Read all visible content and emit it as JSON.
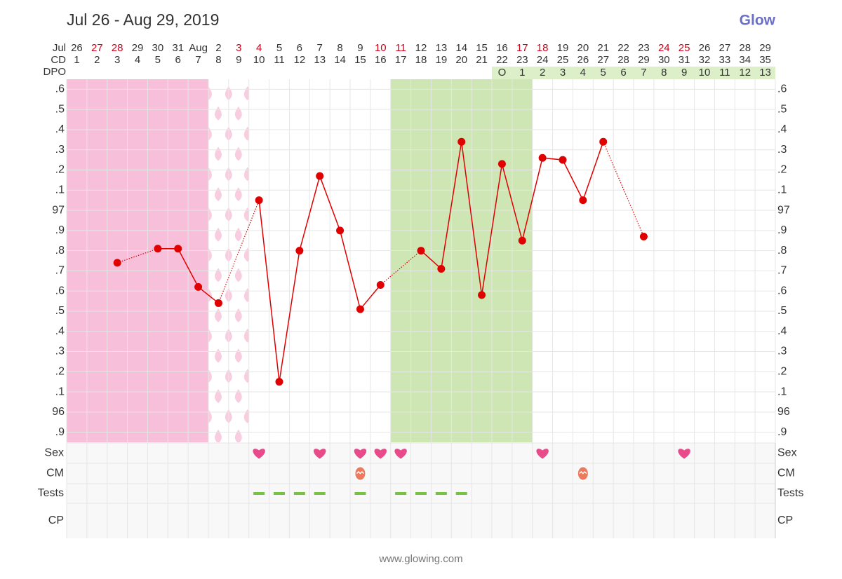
{
  "header": {
    "title": "Jul 26 - Aug 29, 2019",
    "logo": "Glow"
  },
  "chart_data": {
    "type": "line",
    "row_labels": {
      "date": "Jul",
      "cd": "CD",
      "dpo": "DPO"
    },
    "dates": [
      "26",
      "27",
      "28",
      "29",
      "30",
      "31",
      "Aug",
      "2",
      "3",
      "4",
      "5",
      "6",
      "7",
      "8",
      "9",
      "10",
      "11",
      "12",
      "13",
      "14",
      "15",
      "16",
      "17",
      "18",
      "19",
      "20",
      "21",
      "22",
      "23",
      "24",
      "25",
      "26",
      "27",
      "28",
      "29"
    ],
    "weekend": [
      false,
      true,
      true,
      false,
      false,
      false,
      false,
      false,
      true,
      true,
      false,
      false,
      false,
      false,
      false,
      true,
      true,
      false,
      false,
      false,
      false,
      false,
      true,
      true,
      false,
      false,
      false,
      false,
      false,
      true,
      true,
      false,
      false,
      false,
      false
    ],
    "cd": [
      1,
      2,
      3,
      4,
      5,
      6,
      7,
      8,
      9,
      10,
      11,
      12,
      13,
      14,
      15,
      16,
      17,
      18,
      19,
      20,
      21,
      22,
      23,
      24,
      25,
      26,
      27,
      28,
      29,
      30,
      31,
      32,
      33,
      34,
      35
    ],
    "dpo": [
      null,
      null,
      null,
      null,
      null,
      null,
      null,
      null,
      null,
      null,
      null,
      null,
      null,
      null,
      null,
      null,
      null,
      null,
      null,
      null,
      null,
      "O",
      1,
      2,
      3,
      4,
      5,
      6,
      7,
      8,
      9,
      10,
      11,
      12,
      13
    ],
    "values": [
      null,
      null,
      96.74,
      null,
      96.81,
      96.81,
      96.62,
      96.54,
      null,
      97.05,
      96.15,
      96.8,
      97.17,
      96.9,
      96.51,
      96.63,
      null,
      96.8,
      96.71,
      97.34,
      96.58,
      97.23,
      96.85,
      97.26,
      97.25,
      97.05,
      97.34,
      null,
      96.87,
      null,
      null,
      null,
      null,
      null,
      null
    ],
    "color": "#e00000",
    "ylim": [
      95.85,
      97.65
    ],
    "yticks": [
      {
        "value": 97.6,
        "label": ".6"
      },
      {
        "value": 97.5,
        "label": ".5"
      },
      {
        "value": 97.4,
        "label": ".4"
      },
      {
        "value": 97.3,
        "label": ".3"
      },
      {
        "value": 97.2,
        "label": ".2"
      },
      {
        "value": 97.1,
        "label": ".1"
      },
      97,
      {
        "value": 96.9,
        "label": ".9"
      },
      {
        "value": 96.8,
        "label": ".8"
      },
      {
        "value": 96.7,
        "label": ".7"
      },
      {
        "value": 96.6,
        "label": ".6"
      },
      {
        "value": 96.5,
        "label": ".5"
      },
      {
        "value": 96.4,
        "label": ".4"
      },
      {
        "value": 96.3,
        "label": ".3"
      },
      {
        "value": 96.2,
        "label": ".2"
      },
      {
        "value": 96.1,
        "label": ".1"
      },
      96,
      {
        "value": 95.9,
        "label": ".9"
      }
    ],
    "grid": true,
    "period_cd": [
      1,
      7
    ],
    "spotting_cd": [
      8,
      9
    ],
    "fertile_cd": [
      17,
      23
    ],
    "logs": [
      {
        "label": "Sex",
        "days": [
          10,
          13,
          15,
          16,
          17,
          24,
          31
        ]
      },
      {
        "label": "CM",
        "days": [
          15,
          26
        ]
      },
      {
        "label": "Tests",
        "days": [
          10,
          11,
          12,
          13,
          15,
          17,
          18,
          19,
          20
        ]
      },
      {
        "label": "CP",
        "days": []
      }
    ]
  },
  "footer": "www.glowing.com"
}
